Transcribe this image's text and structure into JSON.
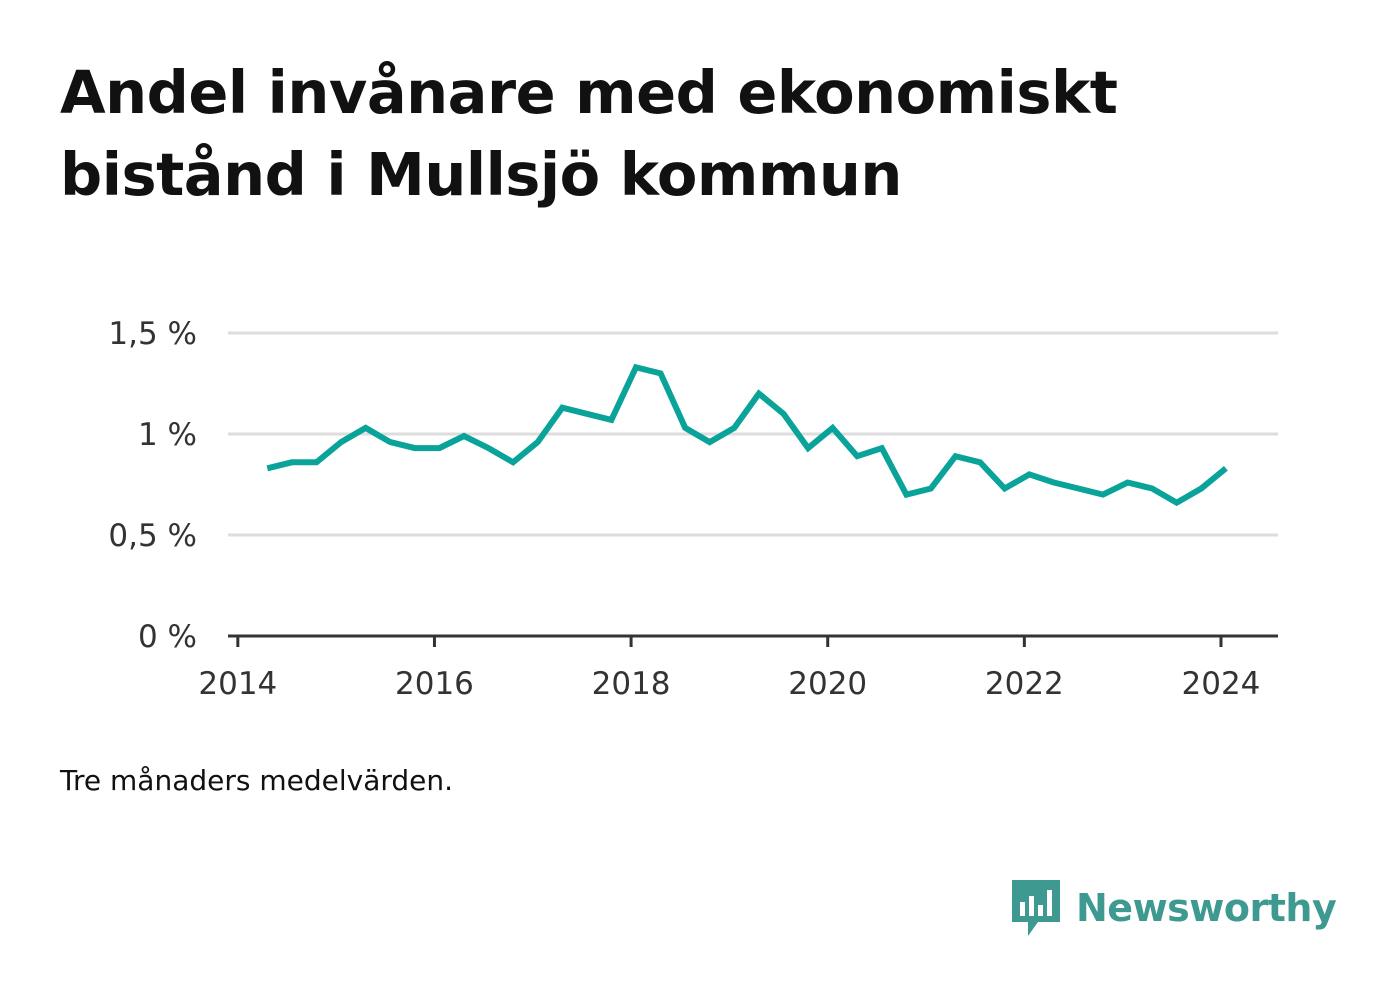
{
  "title": "Andel invånare med ekonomiskt bistånd i Mullsjö kommun",
  "note": "Tre månaders medelvärden.",
  "brand": {
    "name": "Newsworthy",
    "icon": "newsworthy-logo-icon",
    "color": "#3e9a91"
  },
  "colors": {
    "line": "#0aa39a",
    "grid": "#dddddd",
    "axis": "#333333"
  },
  "chart_data": {
    "type": "line",
    "title": "Andel invånare med ekonomiskt bistånd i Mullsjö kommun",
    "xlabel": "",
    "ylabel": "",
    "xlim": [
      2013.9,
      2024.58
    ],
    "ylim": [
      0,
      1.5
    ],
    "x_ticks": [
      2014,
      2016,
      2018,
      2020,
      2022,
      2024
    ],
    "y_ticks": [
      {
        "value": 0,
        "label": "0 %"
      },
      {
        "value": 0.5,
        "label": "0,5 %"
      },
      {
        "value": 1,
        "label": "1 %"
      },
      {
        "value": 1.5,
        "label": "1,5 %"
      }
    ],
    "grid": true,
    "series": [
      {
        "x": [
          2014.3,
          2014.55,
          2014.8,
          2015.05,
          2015.3,
          2015.55,
          2015.8,
          2016.05,
          2016.3,
          2016.55,
          2016.8,
          2017.05,
          2017.3,
          2017.55,
          2017.8,
          2018.05,
          2018.3,
          2018.55,
          2018.8,
          2019.05,
          2019.3,
          2019.55,
          2019.8,
          2020.05,
          2020.3,
          2020.55,
          2020.8,
          2021.05,
          2021.3,
          2021.55,
          2021.8,
          2022.05,
          2022.3,
          2022.55,
          2022.8,
          2023.05,
          2023.3,
          2023.55,
          2023.8,
          2024.05
        ],
        "values": [
          0.83,
          0.86,
          0.86,
          0.96,
          1.03,
          0.96,
          0.93,
          0.93,
          0.99,
          0.93,
          0.86,
          0.96,
          1.13,
          1.1,
          1.07,
          1.33,
          1.3,
          1.03,
          0.96,
          1.03,
          1.2,
          1.1,
          0.93,
          1.03,
          0.89,
          0.93,
          0.7,
          0.73,
          0.89,
          0.86,
          0.73,
          0.8,
          0.76,
          0.73,
          0.7,
          0.76,
          0.73,
          0.66,
          0.73,
          0.83
        ]
      }
    ]
  }
}
